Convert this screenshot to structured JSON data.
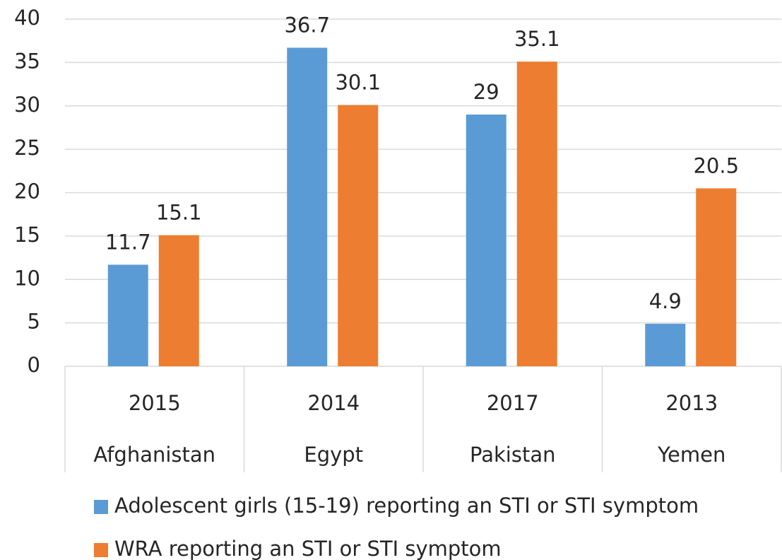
{
  "chart_data": {
    "type": "bar",
    "categories": [
      "2015",
      "2014",
      "2017",
      "2013"
    ],
    "groups": [
      "Afghanistan",
      "Egypt",
      "Pakistan",
      "Yemen"
    ],
    "series": [
      {
        "name": "Adolescent girls (15-19) reporting an STI or STI symptom",
        "color": "#5b9bd5",
        "values": [
          11.7,
          36.7,
          29,
          4.9
        ]
      },
      {
        "name": "WRA reporting an STI or STI symptom",
        "color": "#ed7d31",
        "values": [
          15.1,
          30.1,
          35.1,
          20.5
        ]
      }
    ],
    "ylim": [
      0,
      40
    ],
    "yticks": [
      0,
      5,
      10,
      15,
      20,
      25,
      30,
      35,
      40
    ],
    "grid": true,
    "legend": "bottom"
  }
}
